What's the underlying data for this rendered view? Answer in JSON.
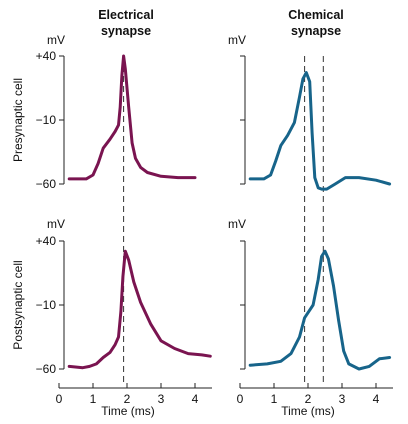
{
  "columns": [
    {
      "title_line1": "Electrical",
      "title_line2": "synapse"
    },
    {
      "title_line1": "Chemical",
      "title_line2": "synapse"
    }
  ],
  "row_labels": [
    "Presynaptic cell",
    "Postsynaptic cell"
  ],
  "unit_label": "mV",
  "xlabel": "Time (ms)",
  "colors": {
    "electrical": "#7a1450",
    "chemical": "#17648a"
  },
  "chart_data": [
    {
      "type": "line",
      "panel": "electrical-presynaptic",
      "xlim": [
        0,
        4.5
      ],
      "ylim": [
        -60,
        40
      ],
      "yticks": [
        40,
        -10,
        -60
      ],
      "ytick_labels": [
        "+40",
        "−10",
        "−60"
      ],
      "xticks": [],
      "markers": [
        1.9
      ],
      "series": [
        {
          "color": "#7a1450",
          "x": [
            0.3,
            0.8,
            1.0,
            1.15,
            1.3,
            1.5,
            1.65,
            1.75,
            1.8,
            1.85,
            1.9,
            1.95,
            2.05,
            2.15,
            2.25,
            2.4,
            2.6,
            3.0,
            3.5,
            4.0
          ],
          "y": [
            -56,
            -56,
            -53,
            -44,
            -32,
            -25,
            -19,
            -14,
            0,
            25,
            40,
            30,
            0,
            -28,
            -40,
            -47,
            -51,
            -54,
            -55,
            -55
          ]
        }
      ]
    },
    {
      "type": "line",
      "panel": "chemical-presynaptic",
      "xlim": [
        0,
        4.5
      ],
      "ylim": [
        -60,
        40
      ],
      "yticks": [
        40,
        -10,
        -60
      ],
      "ytick_labels": [
        "",
        "",
        ""
      ],
      "xticks": [],
      "markers": [
        1.9,
        2.45
      ],
      "series": [
        {
          "color": "#17648a",
          "x": [
            0.3,
            0.7,
            0.9,
            1.05,
            1.2,
            1.4,
            1.6,
            1.75,
            1.85,
            1.95,
            2.05,
            2.12,
            2.2,
            2.3,
            2.4,
            2.55,
            2.8,
            3.1,
            3.5,
            4.0,
            4.4
          ],
          "y": [
            -56,
            -56,
            -53,
            -42,
            -30,
            -22,
            -12,
            8,
            22,
            27,
            20,
            -20,
            -55,
            -63,
            -64,
            -64,
            -60,
            -55,
            -55,
            -57,
            -60
          ]
        }
      ]
    },
    {
      "type": "line",
      "panel": "electrical-postsynaptic",
      "xlim": [
        0,
        4.5
      ],
      "ylim": [
        -60,
        40
      ],
      "yticks": [
        40,
        -10,
        -60
      ],
      "ytick_labels": [
        "+40",
        "−10",
        "−60"
      ],
      "xticks": [
        0,
        1,
        2,
        3,
        4
      ],
      "xtick_labels": [
        "0",
        "1",
        "2",
        "3",
        "4"
      ],
      "markers": [
        1.9
      ],
      "series": [
        {
          "color": "#7a1450",
          "x": [
            0.3,
            0.7,
            0.9,
            1.1,
            1.3,
            1.5,
            1.65,
            1.75,
            1.82,
            1.88,
            1.95,
            2.05,
            2.2,
            2.4,
            2.7,
            3.0,
            3.4,
            3.8,
            4.2,
            4.45
          ],
          "y": [
            -58,
            -59,
            -58,
            -56,
            -51,
            -47,
            -41,
            -35,
            -15,
            12,
            32,
            25,
            8,
            -8,
            -25,
            -38,
            -44,
            -48,
            -49,
            -50
          ]
        }
      ]
    },
    {
      "type": "line",
      "panel": "chemical-postsynaptic",
      "xlim": [
        0,
        4.5
      ],
      "ylim": [
        -60,
        40
      ],
      "yticks": [
        40,
        -10,
        -60
      ],
      "ytick_labels": [
        "",
        "",
        ""
      ],
      "xticks": [
        0,
        1,
        2,
        3,
        4
      ],
      "xtick_labels": [
        "0",
        "1",
        "2",
        "3",
        "4"
      ],
      "markers": [
        1.9,
        2.45
      ],
      "series": [
        {
          "color": "#17648a",
          "x": [
            0.3,
            0.8,
            1.2,
            1.5,
            1.75,
            1.9,
            2.0,
            2.15,
            2.3,
            2.4,
            2.5,
            2.6,
            2.75,
            2.9,
            3.05,
            3.2,
            3.5,
            3.8,
            4.1,
            4.4
          ],
          "y": [
            -57,
            -56,
            -54,
            -48,
            -35,
            -20,
            -16,
            -10,
            10,
            28,
            32,
            26,
            5,
            -22,
            -46,
            -56,
            -60,
            -58,
            -52,
            -51
          ]
        }
      ]
    }
  ]
}
